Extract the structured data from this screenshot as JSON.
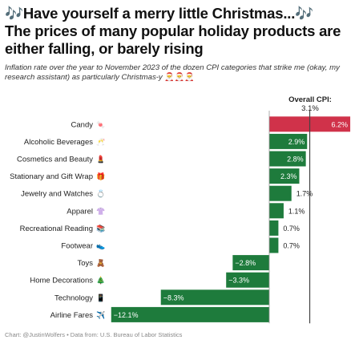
{
  "title_line1": "🎶Have yourself a merry little Christmas...🎶",
  "title_line2": "The prices of many popular holiday products are either falling, or barely rising",
  "subtitle": "Inflation rate over the year to November 2023 of the dozen CPI categories that strike me (okay, my research assistant) as particularly Christmas-y",
  "subtitle_emoji": "🎅🎅🎅",
  "reference": {
    "label": "Overall CPI:",
    "value_label": "3.1%",
    "value": 3.1
  },
  "source": "Chart: @JustinWolfers • Data from: U.S. Bureau of Labor Statistics",
  "colors": {
    "positive_high": "#d0324a",
    "bar": "#1e7b3c",
    "reference_line": "#444444"
  },
  "chart_data": {
    "type": "bar",
    "orientation": "horizontal",
    "categories": [
      "Candy",
      "Alcoholic Beverages",
      "Cosmetics and Beauty",
      "Stationary and Gift Wrap",
      "Jewelry and Watches",
      "Apparel",
      "Recreational Reading",
      "Footwear",
      "Toys",
      "Home Decorations",
      "Technology",
      "Airline Fares"
    ],
    "category_emojis": [
      "🍬",
      "🥂",
      "💄",
      "🎁",
      "💍",
      "👚",
      "📚",
      "👟",
      "🧸",
      "🎄",
      "📱",
      "✈️"
    ],
    "values": [
      6.2,
      2.9,
      2.8,
      2.3,
      1.7,
      1.1,
      0.7,
      0.7,
      -2.8,
      -3.3,
      -8.3,
      -12.1
    ],
    "value_labels": [
      "6.2%",
      "2.9%",
      "2.8%",
      "2.3%",
      "1.7%",
      "1.1%",
      "0.7%",
      "0.7%",
      "−2.8%",
      "−3.3%",
      "−8.3%",
      "−12.1%"
    ],
    "xlim": [
      -12.1,
      6.2
    ],
    "reference_value": 3.1
  }
}
